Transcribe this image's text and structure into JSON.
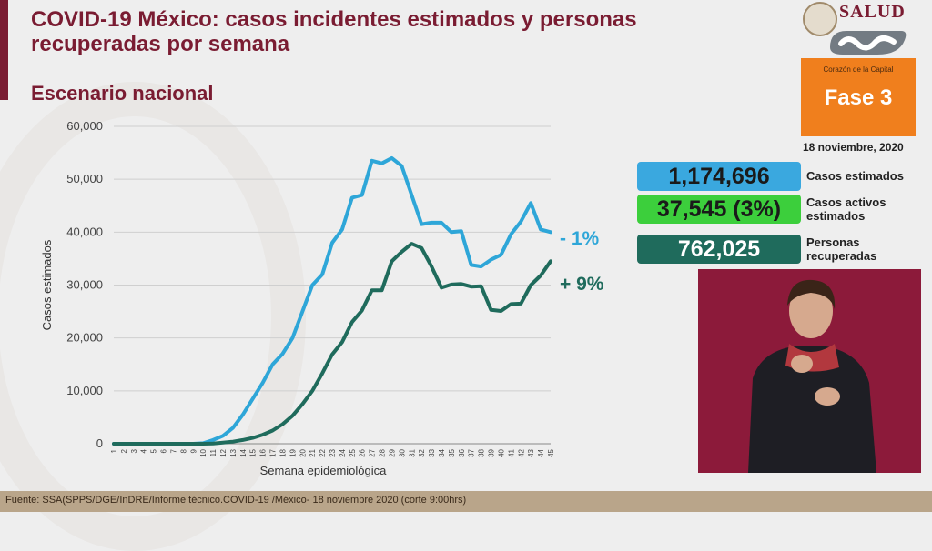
{
  "header": {
    "title": "COVID-19 México: casos incidentes estimados y personas recuperadas por semana",
    "subtitle": "Escenario nacional"
  },
  "brand": {
    "logo_text": "SALUD",
    "phase_sub": "Corazón de la Capital",
    "phase_label": "Fase 3",
    "date": "18 noviembre, 2020"
  },
  "stats": [
    {
      "value": "1,174,696",
      "label": "Casos estimados",
      "color": "#3aa8df"
    },
    {
      "value": "37,545 (3%)",
      "label": "Casos activos estimados",
      "color": "#3ccf3c"
    },
    {
      "value": "762,025",
      "label": "Personas recuperadas",
      "color": "#1f6b5c"
    }
  ],
  "annotations": {
    "blue": "- 1%",
    "green": "+ 9%"
  },
  "footer": {
    "source": "Fuente: SSA(SPPS/DGE/InDRE/Informe técnico.COVID-19 /México- 18 noviembre 2020 (corte 9:00hrs)"
  },
  "chart_data": {
    "type": "line",
    "xlabel": "Semana epidemiológica",
    "ylabel": "Casos estimados",
    "ylim": [
      0,
      60000
    ],
    "yticks": [
      "0",
      "10,000",
      "20,000",
      "30,000",
      "40,000",
      "50,000",
      "60,000"
    ],
    "x": [
      1,
      2,
      3,
      4,
      5,
      6,
      7,
      8,
      9,
      10,
      11,
      12,
      13,
      14,
      15,
      16,
      17,
      18,
      19,
      20,
      21,
      22,
      23,
      24,
      25,
      26,
      27,
      28,
      29,
      30,
      31,
      32,
      33,
      34,
      35,
      36,
      37,
      38,
      39,
      40,
      41,
      42,
      43,
      44,
      45
    ],
    "grid": true,
    "series": [
      {
        "color": "#2ea6d8",
        "values": [
          0,
          0,
          0,
          0,
          0,
          0,
          0,
          0,
          0,
          100,
          700,
          1500,
          3000,
          5500,
          8500,
          11500,
          15000,
          17000,
          20000,
          25000,
          30000,
          32000,
          38000,
          40500,
          46500,
          47000,
          53500,
          53000,
          54000,
          52500,
          47000,
          41500,
          41800,
          41800,
          40000,
          40200,
          33800,
          33500,
          34800,
          35700,
          39600,
          42000,
          45500,
          40500,
          40000
        ]
      },
      {
        "color": "#1f6b5c",
        "values": [
          0,
          0,
          0,
          0,
          0,
          0,
          0,
          0,
          0,
          0,
          50,
          200,
          400,
          700,
          1100,
          1700,
          2500,
          3700,
          5300,
          7500,
          10000,
          13300,
          16900,
          19200,
          23000,
          25200,
          29000,
          29000,
          34500,
          36300,
          37800,
          37000,
          33500,
          29500,
          30100,
          30200,
          29700,
          29800,
          25300,
          25100,
          26400,
          26500,
          30000,
          31800,
          34500
        ]
      }
    ]
  }
}
